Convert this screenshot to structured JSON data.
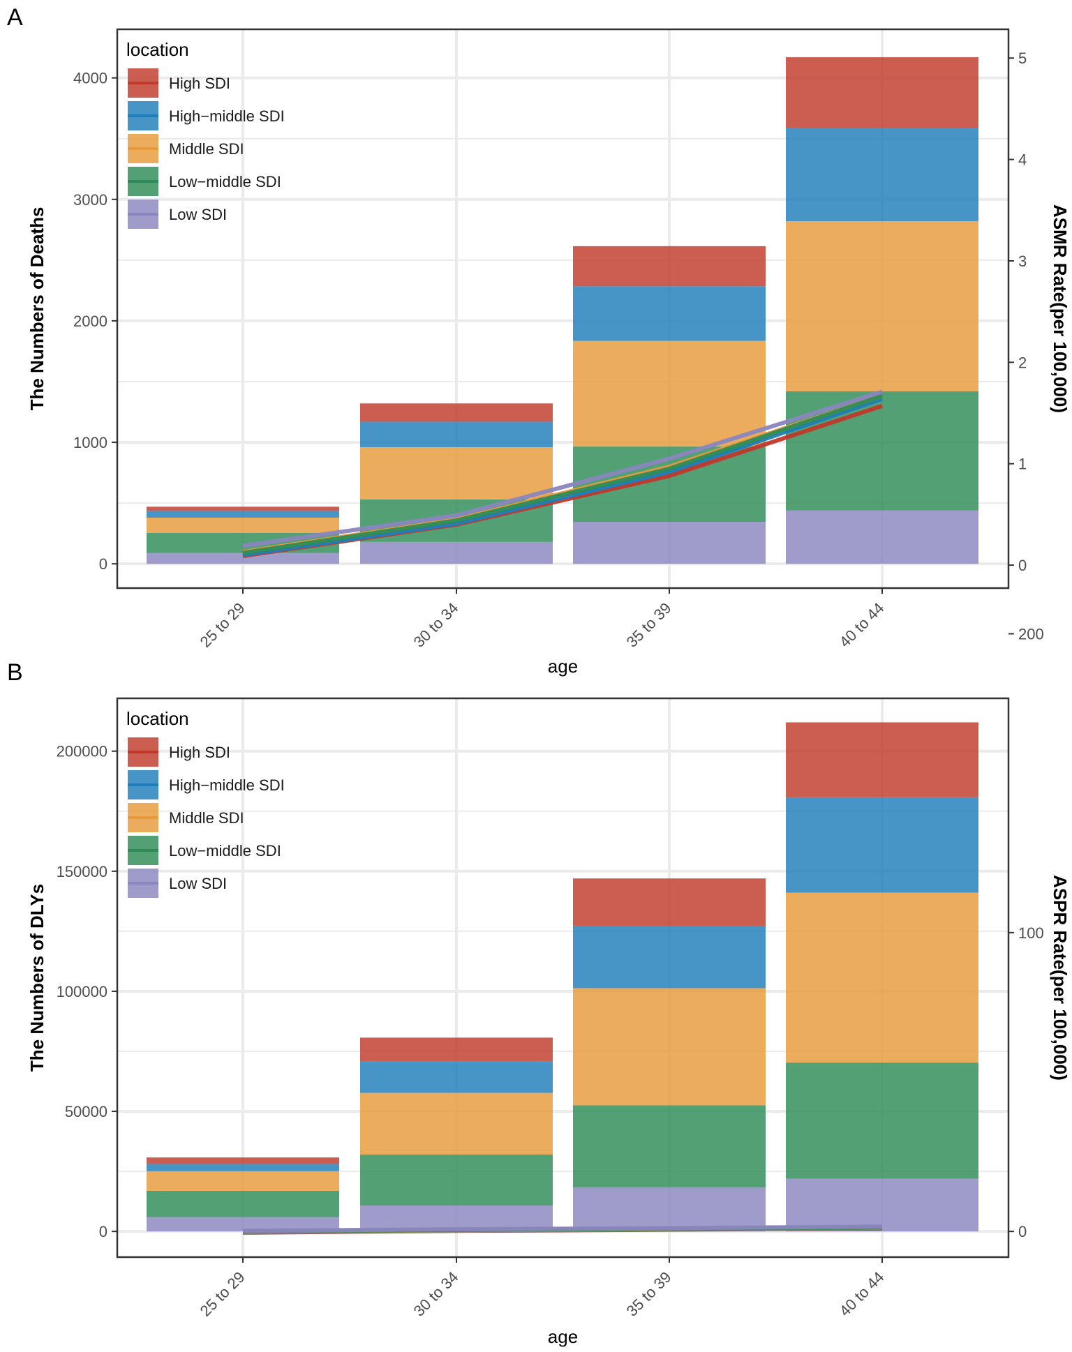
{
  "colors": {
    "High SDI": "#C0392B",
    "High−middle SDI": "#1F7DBB",
    "Middle SDI": "#E89A3B",
    "Low−middle SDI": "#2E8B57",
    "Low SDI": "#8A86BF",
    "grid": "#ebebeb",
    "panel_border": "#333333"
  },
  "legend": {
    "title": "location",
    "items": [
      "High SDI",
      "High−middle SDI",
      "Middle SDI",
      "Low−middle SDI",
      "Low SDI"
    ]
  },
  "chart_data": [
    {
      "panel": "A",
      "type": "bar",
      "stacked": true,
      "secondary_type": "line",
      "categories": [
        "25 to 29",
        "30 to 34",
        "35 to 39",
        "40 to 44"
      ],
      "xlabel": "age",
      "ylabel": "The Numbers of Deaths",
      "ylabel_right": "ASMR Rate(per 100,000)",
      "ylim": [
        -200,
        4400
      ],
      "yticks": [
        0,
        1000,
        2000,
        3000,
        4000
      ],
      "y2lim": [
        -0.2265,
        5.2836
      ],
      "y2ticks": [
        0,
        1,
        2,
        3,
        4,
        5
      ],
      "series": [
        {
          "name": "Low SDI",
          "values": [
            90,
            180,
            345,
            440
          ]
        },
        {
          "name": "Low−middle SDI",
          "values": [
            165,
            350,
            620,
            980
          ]
        },
        {
          "name": "Middle SDI",
          "values": [
            125,
            430,
            870,
            1400
          ]
        },
        {
          "name": "High−middle SDI",
          "values": [
            55,
            210,
            450,
            770
          ]
        },
        {
          "name": "High SDI",
          "values": [
            35,
            150,
            330,
            580
          ]
        }
      ],
      "lines": [
        {
          "name": "High SDI",
          "values": [
            0.09,
            0.4,
            0.88,
            1.57
          ]
        },
        {
          "name": "High−middle SDI",
          "values": [
            0.1,
            0.41,
            0.92,
            1.64
          ]
        },
        {
          "name": "Middle SDI",
          "values": [
            0.13,
            0.45,
            0.97,
            1.67
          ]
        },
        {
          "name": "Low−middle SDI",
          "values": [
            0.12,
            0.44,
            0.95,
            1.67
          ]
        },
        {
          "name": "Low SDI",
          "values": [
            0.19,
            0.49,
            1.05,
            1.71
          ]
        }
      ]
    },
    {
      "panel": "B",
      "type": "bar",
      "stacked": true,
      "secondary_type": "line",
      "categories": [
        "25 to 29",
        "30 to 34",
        "35 to 39",
        "40 to 44"
      ],
      "xlabel": "age",
      "ylabel": "The Numbers of DLYs",
      "ylabel_right": "ASPR Rate(per 100,000)",
      "ylim": [
        -10700,
        222000
      ],
      "yticks": [
        0,
        50000,
        100000,
        150000,
        200000
      ],
      "y2lim": [
        -8.6,
        178.4
      ],
      "y2ticks": [
        0,
        100,
        200
      ],
      "series": [
        {
          "name": "Low SDI",
          "values": [
            6000,
            10800,
            18300,
            22000
          ]
        },
        {
          "name": "Low−middle SDI",
          "values": [
            10900,
            21200,
            34200,
            48300
          ]
        },
        {
          "name": "Middle SDI",
          "values": [
            8200,
            25700,
            48800,
            70800
          ]
        },
        {
          "name": "High−middle SDI",
          "values": [
            3000,
            13200,
            26000,
            39700
          ]
        },
        {
          "name": "High SDI",
          "values": [
            2700,
            9800,
            19700,
            31200
          ]
        }
      ],
      "lines": [
        {
          "name": "High SDI",
          "values": [
            -0.4,
            0.2,
            0.6,
            1.0
          ]
        },
        {
          "name": "High−middle SDI",
          "values": [
            -0.2,
            0.3,
            0.7,
            1.1
          ]
        },
        {
          "name": "Middle SDI",
          "values": [
            -0.1,
            0.4,
            0.8,
            1.2
          ]
        },
        {
          "name": "Low−middle SDI",
          "values": [
            0.0,
            0.5,
            0.9,
            1.3
          ]
        },
        {
          "name": "Low SDI",
          "values": [
            0.2,
            0.7,
            1.1,
            1.6
          ]
        }
      ]
    }
  ]
}
